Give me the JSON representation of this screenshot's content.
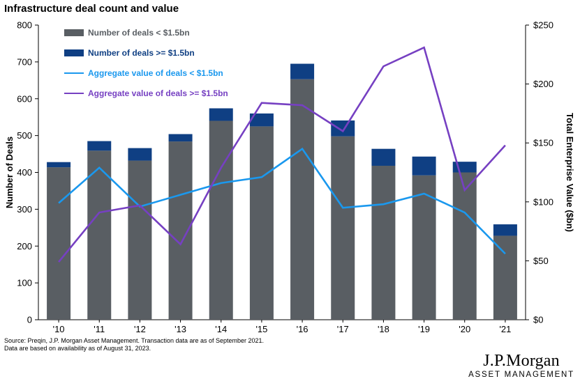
{
  "title": "Infrastructure deal count and value",
  "source": [
    "Source: Preqin, J.P. Morgan Asset Management. Transaction data are as of September 2021.",
    "Data are based on availability as of August 31, 2023."
  ],
  "brand": {
    "name": "J.P.Morgan",
    "sub": "ASSET MANAGEMENT"
  },
  "colors": {
    "small_bar": "#595e63",
    "large_bar": "#0f3f83",
    "small_line": "#1a98ee",
    "large_line": "#7640c2",
    "legend_small_bar_text": "#595e63",
    "legend_large_bar_text": "#0f3f83",
    "legend_small_line_text": "#1a98ee",
    "legend_large_line_text": "#7640c2"
  },
  "chart_data": {
    "type": "bar",
    "categories": [
      "'10",
      "'11",
      "'12",
      "'13",
      "'14",
      "'15",
      "'16",
      "'17",
      "'18",
      "'19",
      "'20",
      "'21"
    ],
    "series": [
      {
        "name": "Number of deals < $1.5bn",
        "kind": "bar",
        "axis": "left",
        "values": [
          414,
          459,
          432,
          484,
          540,
          525,
          653,
          498,
          418,
          392,
          400,
          228
        ]
      },
      {
        "name": "Number of deals >= $1.5bn",
        "kind": "bar",
        "axis": "left",
        "values": [
          14,
          26,
          34,
          20,
          34,
          35,
          42,
          43,
          46,
          51,
          29,
          31
        ]
      },
      {
        "name": "Aggregate value of deals < $1.5bn",
        "kind": "line",
        "axis": "right",
        "values": [
          99,
          129,
          96,
          106,
          116,
          121,
          145,
          95,
          98,
          107,
          91,
          56
        ]
      },
      {
        "name": "Aggregate value of deals >= $1.5bn",
        "kind": "line",
        "axis": "right",
        "values": [
          49,
          91,
          97,
          64,
          129,
          184,
          182,
          160,
          215,
          231,
          110,
          148
        ]
      }
    ],
    "ylabel": "Number of Deals",
    "y2label": "Total Enterprise Value ($bn)",
    "ylim": [
      0,
      800
    ],
    "y2lim": [
      0,
      250
    ],
    "yticks": [
      "0",
      "100",
      "200",
      "300",
      "400",
      "500",
      "600",
      "700",
      "800"
    ],
    "y2ticks": [
      "$0",
      "$50",
      "$100",
      "$150",
      "$200",
      "$250"
    ],
    "stacked": true,
    "grid": false,
    "legend_position": "top-left"
  }
}
